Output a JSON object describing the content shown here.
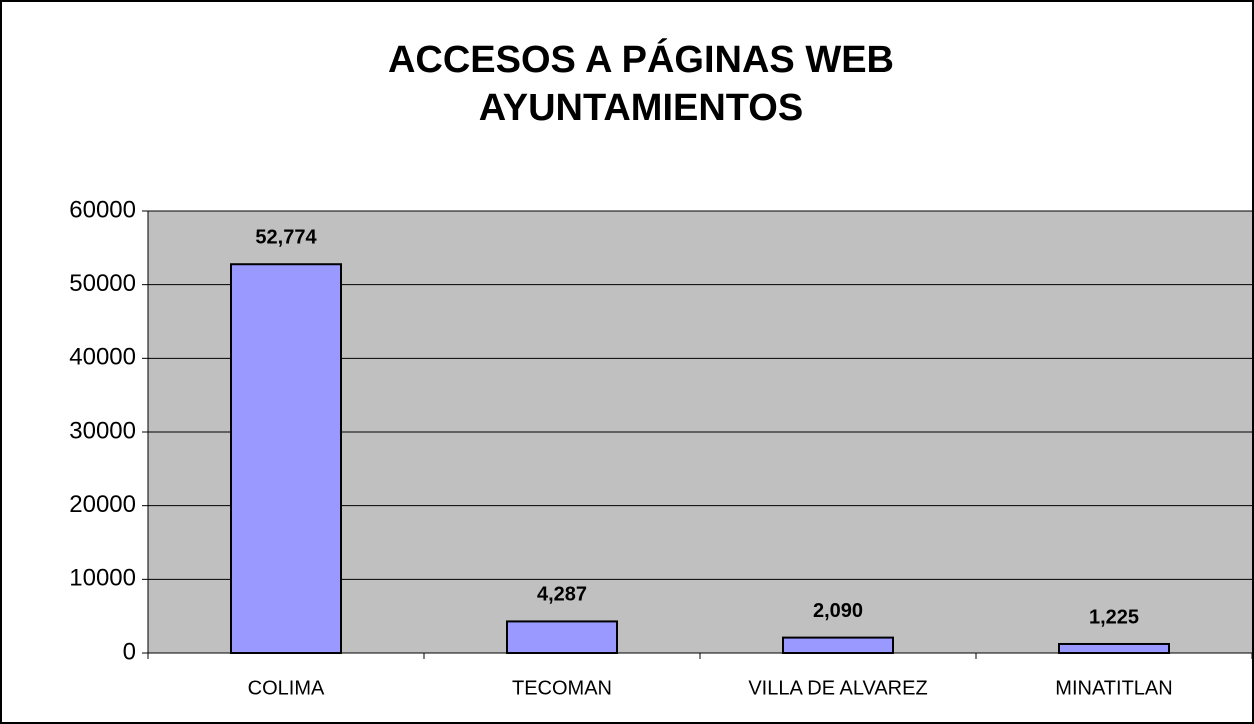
{
  "chart_data": {
    "type": "bar",
    "title": [
      "ACCESOS A PÁGINAS WEB",
      "AYUNTAMIENTOS"
    ],
    "categories": [
      "COLIMA",
      "TECOMAN",
      "VILLA DE ALVAREZ",
      "MINATITLAN"
    ],
    "values": [
      52774,
      4287,
      2090,
      1225
    ],
    "value_labels": [
      "52,774",
      "4,287",
      "2,090",
      "1,225"
    ],
    "color": "#9999ff",
    "ylim": [
      0,
      60000
    ],
    "yticks": [
      0,
      10000,
      20000,
      30000,
      40000,
      50000,
      60000
    ],
    "grid": true
  }
}
